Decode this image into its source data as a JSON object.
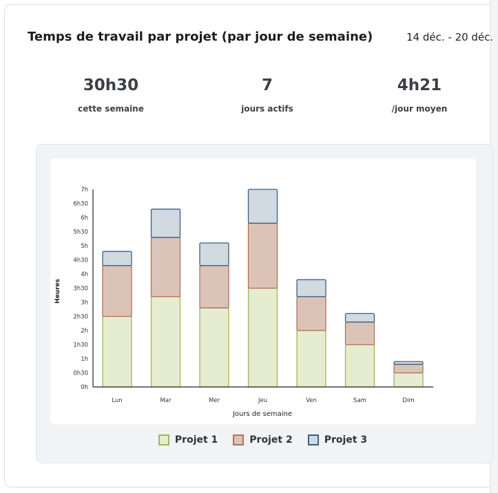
{
  "header": {
    "title": "Temps de travail par projet (par jour de semaine)",
    "date_range": "14 déc. - 20 déc."
  },
  "stats": [
    {
      "value": "30h30",
      "label": "cette semaine"
    },
    {
      "value": "7",
      "label": "jours actifs"
    },
    {
      "value": "4h21",
      "label": "/jour moyen"
    }
  ],
  "chart_data": {
    "type": "bar",
    "stacked": true,
    "categories": [
      "Lun",
      "Mar",
      "Mer",
      "Jeu",
      "Ven",
      "Sam",
      "Dim"
    ],
    "xlabel": "Jours de semaine",
    "ylabel": "Heures",
    "ylim": [
      0,
      7
    ],
    "yticks": [
      "0h",
      "0h30",
      "1h",
      "1h30",
      "2h",
      "2h30",
      "3h",
      "3h30",
      "4h",
      "4h30",
      "5h",
      "5h30",
      "6h",
      "6h30",
      "7h"
    ],
    "grid": false,
    "legend_position": "bottom",
    "series": [
      {
        "name": "Projet 1",
        "fill": "#e6ecd0",
        "stroke": "#9eb55a",
        "values": [
          2.5,
          3.2,
          2.8,
          3.5,
          2.0,
          1.5,
          0.5
        ]
      },
      {
        "name": "Projet 2",
        "fill": "#dcc3b8",
        "stroke": "#b0705a",
        "values": [
          1.8,
          2.1,
          1.5,
          2.3,
          1.2,
          0.8,
          0.3
        ]
      },
      {
        "name": "Projet 3",
        "fill": "#d1d9e1",
        "stroke": "#3e5f80",
        "values": [
          0.5,
          1.0,
          0.8,
          1.2,
          0.6,
          0.3,
          0.1
        ]
      }
    ]
  }
}
